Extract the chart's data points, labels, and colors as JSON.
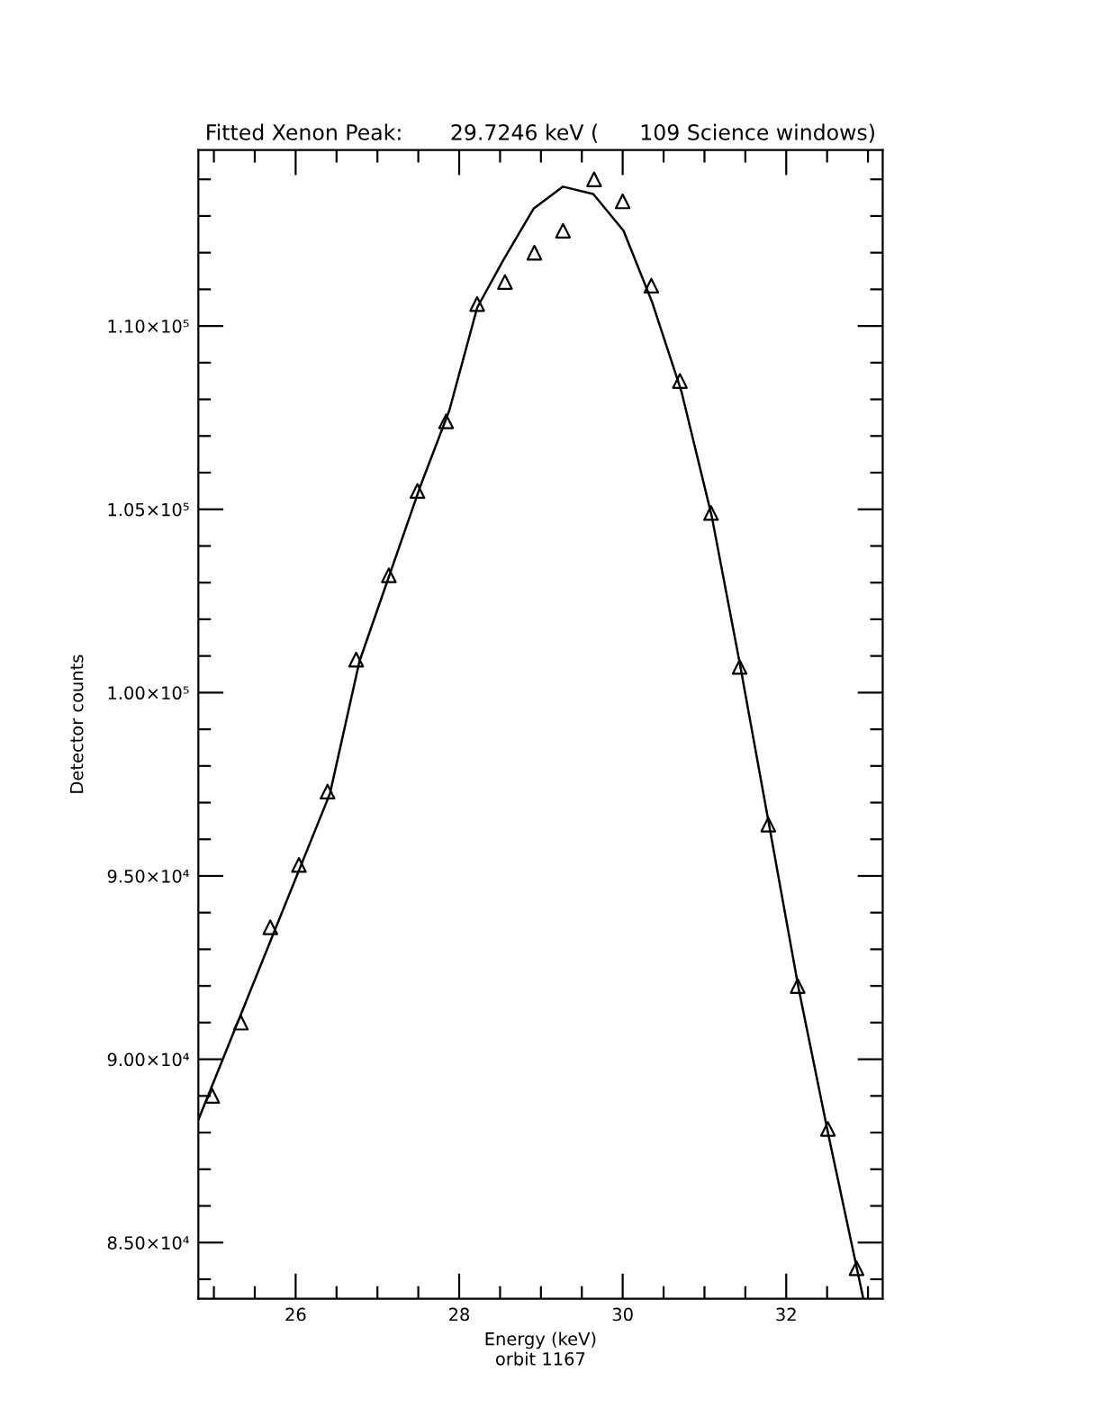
{
  "chart_data": {
    "type": "scatter",
    "title": "Fitted Xenon Peak:       29.7246 keV (      109 Science windows)",
    "xlabel": "Energy (keV)",
    "ylabel": "Detector counts",
    "annotations": [
      "orbit 1167"
    ],
    "series": [
      {
        "marker": "triangle",
        "color": "#000000",
        "x": [
          24.98,
          25.33,
          25.69,
          26.04,
          26.39,
          26.74,
          27.14,
          27.49,
          27.84,
          28.22,
          28.56,
          28.92,
          29.27,
          29.65,
          30.0,
          30.35,
          30.7,
          31.08,
          31.43,
          31.78,
          32.14,
          32.51,
          32.86
        ],
        "values": [
          89000,
          91000,
          93600,
          95300,
          97300,
          100900,
          103200,
          105500,
          107400,
          110600,
          111200,
          112000,
          112600,
          114000,
          113400,
          111100,
          108500,
          104900,
          100700,
          96400,
          92000,
          88100,
          84300
        ]
      },
      {
        "type": "line",
        "marker": "none",
        "line_style": "solid",
        "color": "#000000",
        "x": [
          24.81,
          26.42,
          26.78,
          27.52,
          27.88,
          28.22,
          28.54,
          28.91,
          29.27,
          29.64,
          30.01,
          30.36,
          30.72,
          31.09,
          31.44,
          31.79,
          32.15,
          32.51,
          32.94
        ],
        "values": [
          88350,
          97250,
          100850,
          105600,
          107700,
          110500,
          111800,
          113200,
          113800,
          113600,
          112600,
          110650,
          108200,
          104800,
          100700,
          96400,
          91950,
          88000,
          83500
        ]
      }
    ],
    "xlim": [
      24.81,
      33.18
    ],
    "ylim": [
      83470,
      114800
    ],
    "xticks": [
      {
        "value": 25,
        "label": null
      },
      {
        "value": 25.5,
        "label": null
      },
      26,
      {
        "value": 26.5,
        "label": null
      },
      {
        "value": 27,
        "label": null
      },
      {
        "value": 27.5,
        "label": null
      },
      28,
      {
        "value": 28.5,
        "label": null
      },
      {
        "value": 29,
        "label": null
      },
      {
        "value": 29.5,
        "label": null
      },
      30,
      {
        "value": 30.5,
        "label": null
      },
      {
        "value": 31,
        "label": null
      },
      {
        "value": 31.5,
        "label": null
      },
      32,
      {
        "value": 32.5,
        "label": null
      },
      {
        "value": 33,
        "label": null
      }
    ],
    "yticks": [
      {
        "value": 84000,
        "label": null
      },
      {
        "value": 85000,
        "label": "8.50×10⁴"
      },
      {
        "value": 86000,
        "label": null
      },
      {
        "value": 87000,
        "label": null
      },
      {
        "value": 88000,
        "label": null
      },
      {
        "value": 89000,
        "label": null
      },
      {
        "value": 90000,
        "label": "9.00×10⁴"
      },
      {
        "value": 91000,
        "label": null
      },
      {
        "value": 92000,
        "label": null
      },
      {
        "value": 93000,
        "label": null
      },
      {
        "value": 94000,
        "label": null
      },
      {
        "value": 95000,
        "label": "9.50×10⁴"
      },
      {
        "value": 96000,
        "label": null
      },
      {
        "value": 97000,
        "label": null
      },
      {
        "value": 98000,
        "label": null
      },
      {
        "value": 99000,
        "label": null
      },
      {
        "value": 100000,
        "label": "1.00×10⁵"
      },
      {
        "value": 101000,
        "label": null
      },
      {
        "value": 102000,
        "label": null
      },
      {
        "value": 103000,
        "label": null
      },
      {
        "value": 104000,
        "label": null
      },
      {
        "value": 105000,
        "label": "1.05×10⁵"
      },
      {
        "value": 106000,
        "label": null
      },
      {
        "value": 107000,
        "label": null
      },
      {
        "value": 108000,
        "label": null
      },
      {
        "value": 109000,
        "label": null
      },
      {
        "value": 110000,
        "label": "1.10×10⁵"
      },
      {
        "value": 111000,
        "label": null
      },
      {
        "value": 112000,
        "label": null
      },
      {
        "value": 113000,
        "label": null
      },
      {
        "value": 114000,
        "label": null
      }
    ],
    "grid": false,
    "legend": false
  }
}
